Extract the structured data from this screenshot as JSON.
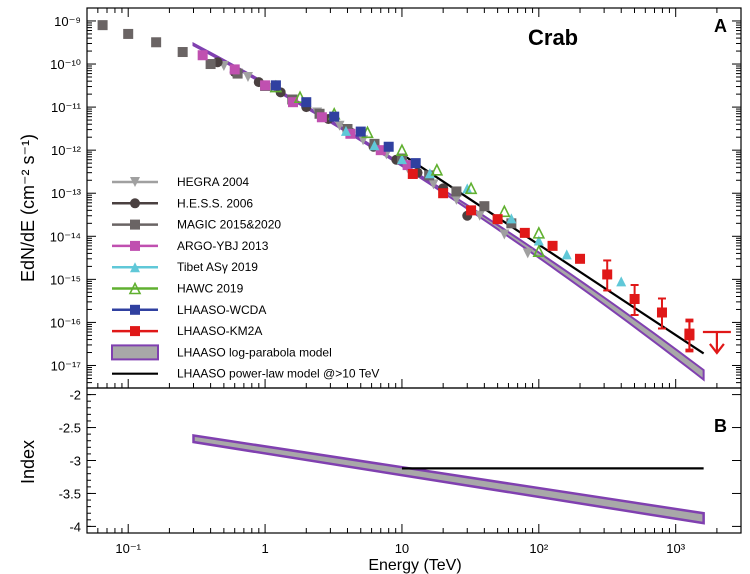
{
  "chart_data": [
    {
      "panel": "A",
      "type": "scatter",
      "title": "Crab",
      "xlabel": "Energy (TeV)",
      "ylabel": "EdN/dE (cm⁻² s⁻¹)",
      "xscale": "log",
      "yscale": "log",
      "xlim": [
        0.05,
        3000
      ],
      "ylim": [
        3e-18,
        2e-09
      ],
      "x_ticks": [
        "10⁻¹",
        "1",
        "10",
        "10²",
        "10³"
      ],
      "y_ticks": [
        "10⁻⁹",
        "10⁻¹⁰",
        "10⁻¹¹",
        "10⁻¹²",
        "10⁻¹³",
        "10⁻¹⁴",
        "10⁻¹⁵",
        "10⁻¹⁶",
        "10⁻¹⁷"
      ],
      "legend_position": "bottom-left",
      "series": [
        {
          "name": "HEGRA 2004",
          "marker": "triangle-down",
          "color": "#a0a0a0",
          "points": [
            [
              0.5,
              9e-11
            ],
            [
              0.75,
              5e-11
            ],
            [
              1.1,
              2.8e-11
            ],
            [
              1.6,
              1.5e-11
            ],
            [
              2.4,
              7.5e-12
            ],
            [
              3.5,
              3.7e-12
            ],
            [
              5.2,
              1.7e-12
            ],
            [
              7.7,
              8e-13
            ],
            [
              11,
              3.8e-13
            ],
            [
              17,
              1.6e-13
            ],
            [
              25,
              7e-14
            ],
            [
              37,
              3e-14
            ],
            [
              56,
              1.1e-14
            ],
            [
              83,
              4e-15
            ]
          ]
        },
        {
          "name": "H.E.S.S. 2006",
          "marker": "circle",
          "color": "#4a4040",
          "points": [
            [
              0.45,
              1.1e-10
            ],
            [
              0.6,
              6.5e-11
            ],
            [
              0.9,
              3.8e-11
            ],
            [
              1.3,
              2.2e-11
            ],
            [
              2.0,
              1e-11
            ],
            [
              2.9,
              5.3e-12
            ],
            [
              4.2,
              2.6e-12
            ],
            [
              6.2,
              1.2e-12
            ],
            [
              9.1,
              6e-13
            ],
            [
              13,
              3e-13
            ],
            [
              20,
              1.3e-13
            ],
            [
              30,
              3e-14
            ]
          ]
        },
        {
          "name": "MAGIC 2015&2020",
          "marker": "square",
          "color": "#6a6464",
          "points": [
            [
              0.065,
              8e-10
            ],
            [
              0.1,
              5e-10
            ],
            [
              0.16,
              3.2e-10
            ],
            [
              0.25,
              1.9e-10
            ],
            [
              0.4,
              1e-10
            ],
            [
              0.63,
              6e-11
            ],
            [
              1.0,
              3.1e-11
            ],
            [
              1.58,
              1.5e-11
            ],
            [
              2.5,
              7e-12
            ],
            [
              4.0,
              3.1e-12
            ],
            [
              6.3,
              1.4e-12
            ],
            [
              10,
              6.4e-13
            ],
            [
              15.8,
              2.6e-13
            ],
            [
              25,
              1.1e-13
            ],
            [
              40,
              5e-14
            ],
            [
              63,
              2e-14
            ]
          ]
        },
        {
          "name": "ARGO-YBJ 2013",
          "marker": "square",
          "color": "#c050b0",
          "points": [
            [
              0.35,
              1.6e-10
            ],
            [
              0.6,
              7.5e-11
            ],
            [
              1.0,
              3.2e-11
            ],
            [
              1.6,
              1.3e-11
            ],
            [
              2.6,
              5.8e-12
            ],
            [
              4.2,
              2.4e-12
            ],
            [
              7,
              1e-12
            ],
            [
              11,
              4.5e-13
            ]
          ]
        },
        {
          "name": "Tibet ASγ 2019",
          "marker": "triangle-up",
          "color": "#60c8d8",
          "points": [
            [
              3.9,
              2.8e-12
            ],
            [
              6.3,
              1.3e-12
            ],
            [
              10,
              6.2e-13
            ],
            [
              16,
              2.9e-13
            ],
            [
              30,
              1.3e-13
            ],
            [
              63,
              2.6e-14
            ],
            [
              100,
              8e-15
            ],
            [
              160,
              3.8e-15
            ],
            [
              400,
              9e-16
            ]
          ]
        },
        {
          "name": "HAWC 2019",
          "marker": "triangle-up-open",
          "color": "#60b030",
          "points": [
            [
              1.2,
              3e-11
            ],
            [
              1.8,
              1.7e-11
            ],
            [
              3.2,
              7e-12
            ],
            [
              5.6,
              2.6e-12
            ],
            [
              10,
              1e-12
            ],
            [
              18,
              3.5e-13
            ],
            [
              32,
              1.3e-13
            ],
            [
              56,
              3.8e-14
            ],
            [
              100,
              1.2e-14
            ],
            [
              100,
              4.5e-15
            ]
          ]
        },
        {
          "name": "LHAASO-WCDA",
          "marker": "square",
          "color": "#3040a0",
          "points": [
            [
              1.2,
              3.2e-11
            ],
            [
              2.0,
              1.3e-11
            ],
            [
              3.2,
              6e-12
            ],
            [
              5.0,
              2.7e-12
            ],
            [
              8,
              1.2e-12
            ],
            [
              12.6,
              5e-13
            ]
          ]
        },
        {
          "name": "LHAASO-KM2A",
          "marker": "square",
          "color": "#e01818",
          "points": [
            [
              12,
              2.8e-13
            ],
            [
              20,
              1e-13
            ],
            [
              32,
              4e-14
            ],
            [
              50,
              2.5e-14
            ],
            [
              79,
              1.2e-14
            ],
            [
              126,
              6e-15
            ],
            [
              200,
              3e-15
            ],
            [
              316,
              1.3e-15
            ],
            [
              501,
              3.5e-16
            ],
            [
              794,
              1.7e-16
            ],
            [
              1260,
              5e-17
            ],
            [
              1260,
              5.5e-17
            ]
          ]
        }
      ],
      "km2a_upper_limit": {
        "x": 2000,
        "y": 6e-17
      },
      "models": [
        {
          "name": "LHAASO log-parabola model",
          "color_fill": "#a8a8a8",
          "color_edge": "#8040b0"
        },
        {
          "name": "LHAASO power-law model @>10 TeV",
          "color": "#000000"
        }
      ]
    },
    {
      "panel": "B",
      "type": "line",
      "xlabel": "Energy (TeV)",
      "ylabel": "Index",
      "xscale": "log",
      "xlim": [
        0.05,
        3000
      ],
      "ylim": [
        -4.1,
        -1.9
      ],
      "y_ticks": [
        "-2",
        "-2.5",
        "-3",
        "-3.5",
        "-4"
      ],
      "log_parabola_band": {
        "x": [
          0.3,
          1600
        ],
        "upper": [
          -2.62,
          -3.8
        ],
        "lower": [
          -2.72,
          -3.95
        ]
      },
      "power_law_index": {
        "x": [
          10,
          1600
        ],
        "y": -3.12
      }
    }
  ],
  "panel_tags": {
    "a": "A",
    "b": "B"
  },
  "colors": {
    "band": "#a8a8a8",
    "band_edge": "#8040b0",
    "powerlaw": "#000000"
  }
}
